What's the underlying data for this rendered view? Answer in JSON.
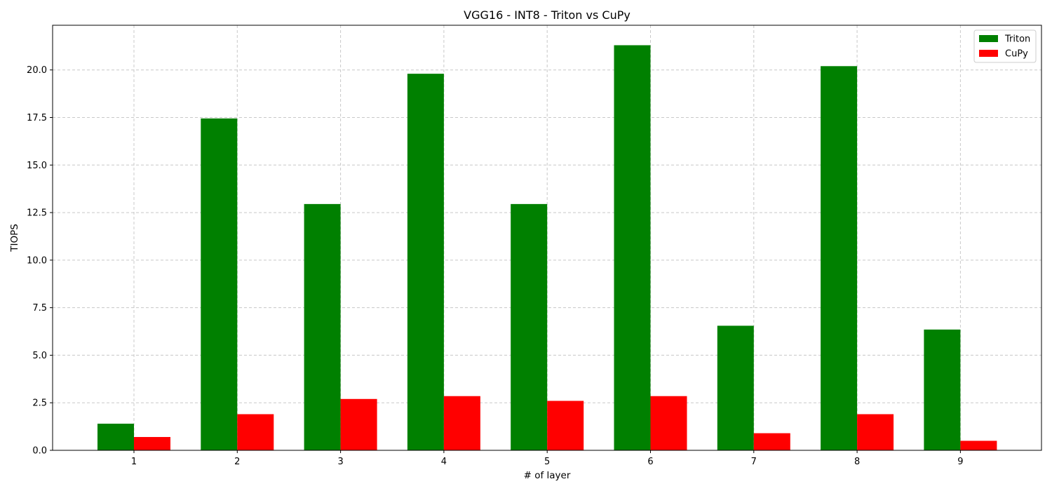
{
  "chart_data": {
    "type": "bar",
    "title": "VGG16 - INT8 - Triton vs CuPy",
    "xlabel": "# of layer",
    "ylabel": "TIOPS",
    "categories": [
      "1",
      "2",
      "3",
      "4",
      "5",
      "6",
      "7",
      "8",
      "9"
    ],
    "series": [
      {
        "name": "Triton",
        "color": "#008000",
        "values": [
          1.4,
          17.45,
          12.95,
          19.8,
          12.95,
          21.3,
          6.55,
          20.2,
          6.35
        ]
      },
      {
        "name": "CuPy",
        "color": "#ff0000",
        "values": [
          0.7,
          1.9,
          2.7,
          2.85,
          2.6,
          2.85,
          0.9,
          1.9,
          0.5
        ]
      }
    ],
    "ylim": [
      0,
      22.35
    ],
    "yticks": [
      "0.0",
      "2.5",
      "5.0",
      "7.5",
      "10.0",
      "12.5",
      "15.0",
      "17.5",
      "20.0"
    ],
    "grid": true,
    "legend_position": "top-right"
  }
}
